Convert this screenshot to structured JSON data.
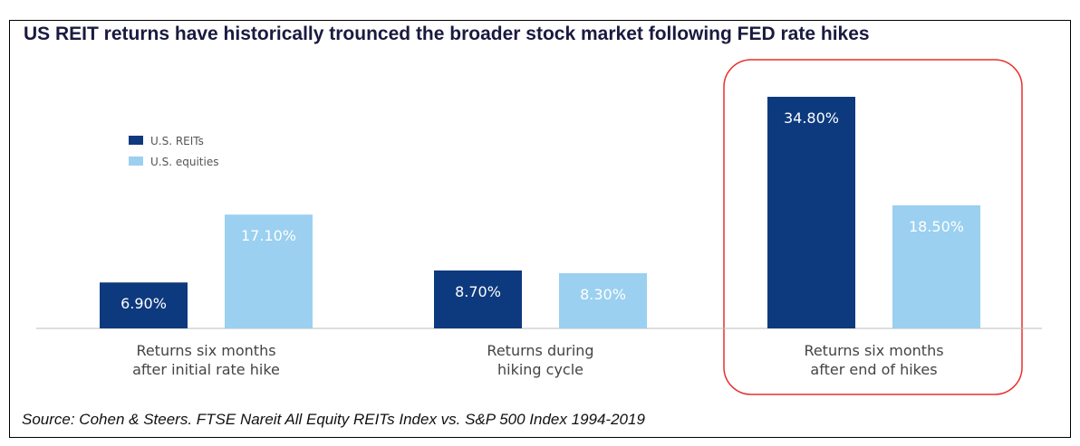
{
  "chart_data": {
    "type": "bar",
    "title": "US REIT returns have historically trounced the broader stock market following FED rate hikes",
    "source": "Source: Cohen & Steers. FTSE Nareit All Equity REITs Index vs. S&P 500 Index 1994-2019",
    "categories": [
      [
        "Returns six months",
        "after initial rate hike"
      ],
      [
        "Returns during",
        "hiking cycle"
      ],
      [
        "Returns six months",
        "after end of hikes"
      ]
    ],
    "series": [
      {
        "name": "U.S. REITs",
        "color": "#0d3a7e",
        "values": [
          6.9,
          8.7,
          34.8
        ],
        "labels": [
          "6.90%",
          "8.70%",
          "34.80%"
        ]
      },
      {
        "name": "U.S. equities",
        "color": "#9bd0f0",
        "values": [
          17.1,
          8.3,
          18.5
        ],
        "labels": [
          "17.10%",
          "8.30%",
          "18.50%"
        ]
      }
    ],
    "highlight_category": 2,
    "highlight_color": "#e8302a",
    "ylim": [
      0,
      34.8
    ],
    "legend": "top-left"
  }
}
